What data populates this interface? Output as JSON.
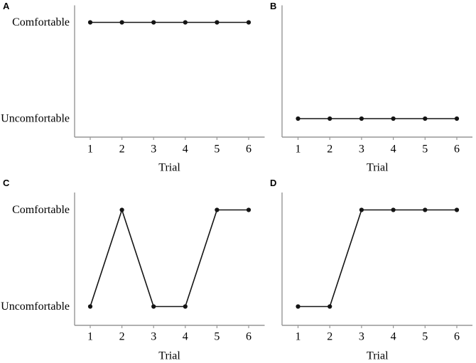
{
  "figure": {
    "background": "#ffffff",
    "axis_color": "#969696",
    "data_color": "#141414",
    "text_color": "#000000",
    "y_level_names": {
      "0": "Uncomfortable",
      "1": "Comfortable"
    }
  },
  "chart_data": [
    {
      "type": "line",
      "panel_label": "A",
      "title": "",
      "xlabel": "Trial",
      "x": [
        1,
        2,
        3,
        4,
        5,
        6
      ],
      "xtick_labels": [
        "1",
        "2",
        "3",
        "4",
        "5",
        "6"
      ],
      "values": [
        1,
        1,
        1,
        1,
        1,
        1
      ],
      "value_names": [
        "Comfortable",
        "Comfortable",
        "Comfortable",
        "Comfortable",
        "Comfortable",
        "Comfortable"
      ],
      "ytick_labels": [
        "Uncomfortable",
        "Comfortable"
      ],
      "show_ytick_labels": true,
      "ylim": [
        0,
        1
      ],
      "marker": "dot",
      "grid": false,
      "legend": false
    },
    {
      "type": "line",
      "panel_label": "B",
      "title": "",
      "xlabel": "Trial",
      "x": [
        1,
        2,
        3,
        4,
        5,
        6
      ],
      "xtick_labels": [
        "1",
        "2",
        "3",
        "4",
        "5",
        "6"
      ],
      "values": [
        0,
        0,
        0,
        0,
        0,
        0
      ],
      "value_names": [
        "Uncomfortable",
        "Uncomfortable",
        "Uncomfortable",
        "Uncomfortable",
        "Uncomfortable",
        "Uncomfortable"
      ],
      "ytick_labels": [
        "Uncomfortable",
        "Comfortable"
      ],
      "show_ytick_labels": false,
      "ylim": [
        0,
        1
      ],
      "marker": "dot",
      "grid": false,
      "legend": false
    },
    {
      "type": "line",
      "panel_label": "C",
      "title": "",
      "xlabel": "Trial",
      "x": [
        1,
        2,
        3,
        4,
        5,
        6
      ],
      "xtick_labels": [
        "1",
        "2",
        "3",
        "4",
        "5",
        "6"
      ],
      "values": [
        0,
        1,
        0,
        0,
        1,
        1
      ],
      "value_names": [
        "Uncomfortable",
        "Comfortable",
        "Uncomfortable",
        "Uncomfortable",
        "Comfortable",
        "Comfortable"
      ],
      "ytick_labels": [
        "Uncomfortable",
        "Comfortable"
      ],
      "show_ytick_labels": true,
      "ylim": [
        0,
        1
      ],
      "marker": "dot",
      "grid": false,
      "legend": false
    },
    {
      "type": "line",
      "panel_label": "D",
      "title": "",
      "xlabel": "Trial",
      "x": [
        1,
        2,
        3,
        4,
        5,
        6
      ],
      "xtick_labels": [
        "1",
        "2",
        "3",
        "4",
        "5",
        "6"
      ],
      "values": [
        0,
        0,
        1,
        1,
        1,
        1
      ],
      "value_names": [
        "Uncomfortable",
        "Uncomfortable",
        "Comfortable",
        "Comfortable",
        "Comfortable",
        "Comfortable"
      ],
      "ytick_labels": [
        "Uncomfortable",
        "Comfortable"
      ],
      "show_ytick_labels": false,
      "ylim": [
        0,
        1
      ],
      "marker": "dot",
      "grid": false,
      "legend": false
    }
  ]
}
